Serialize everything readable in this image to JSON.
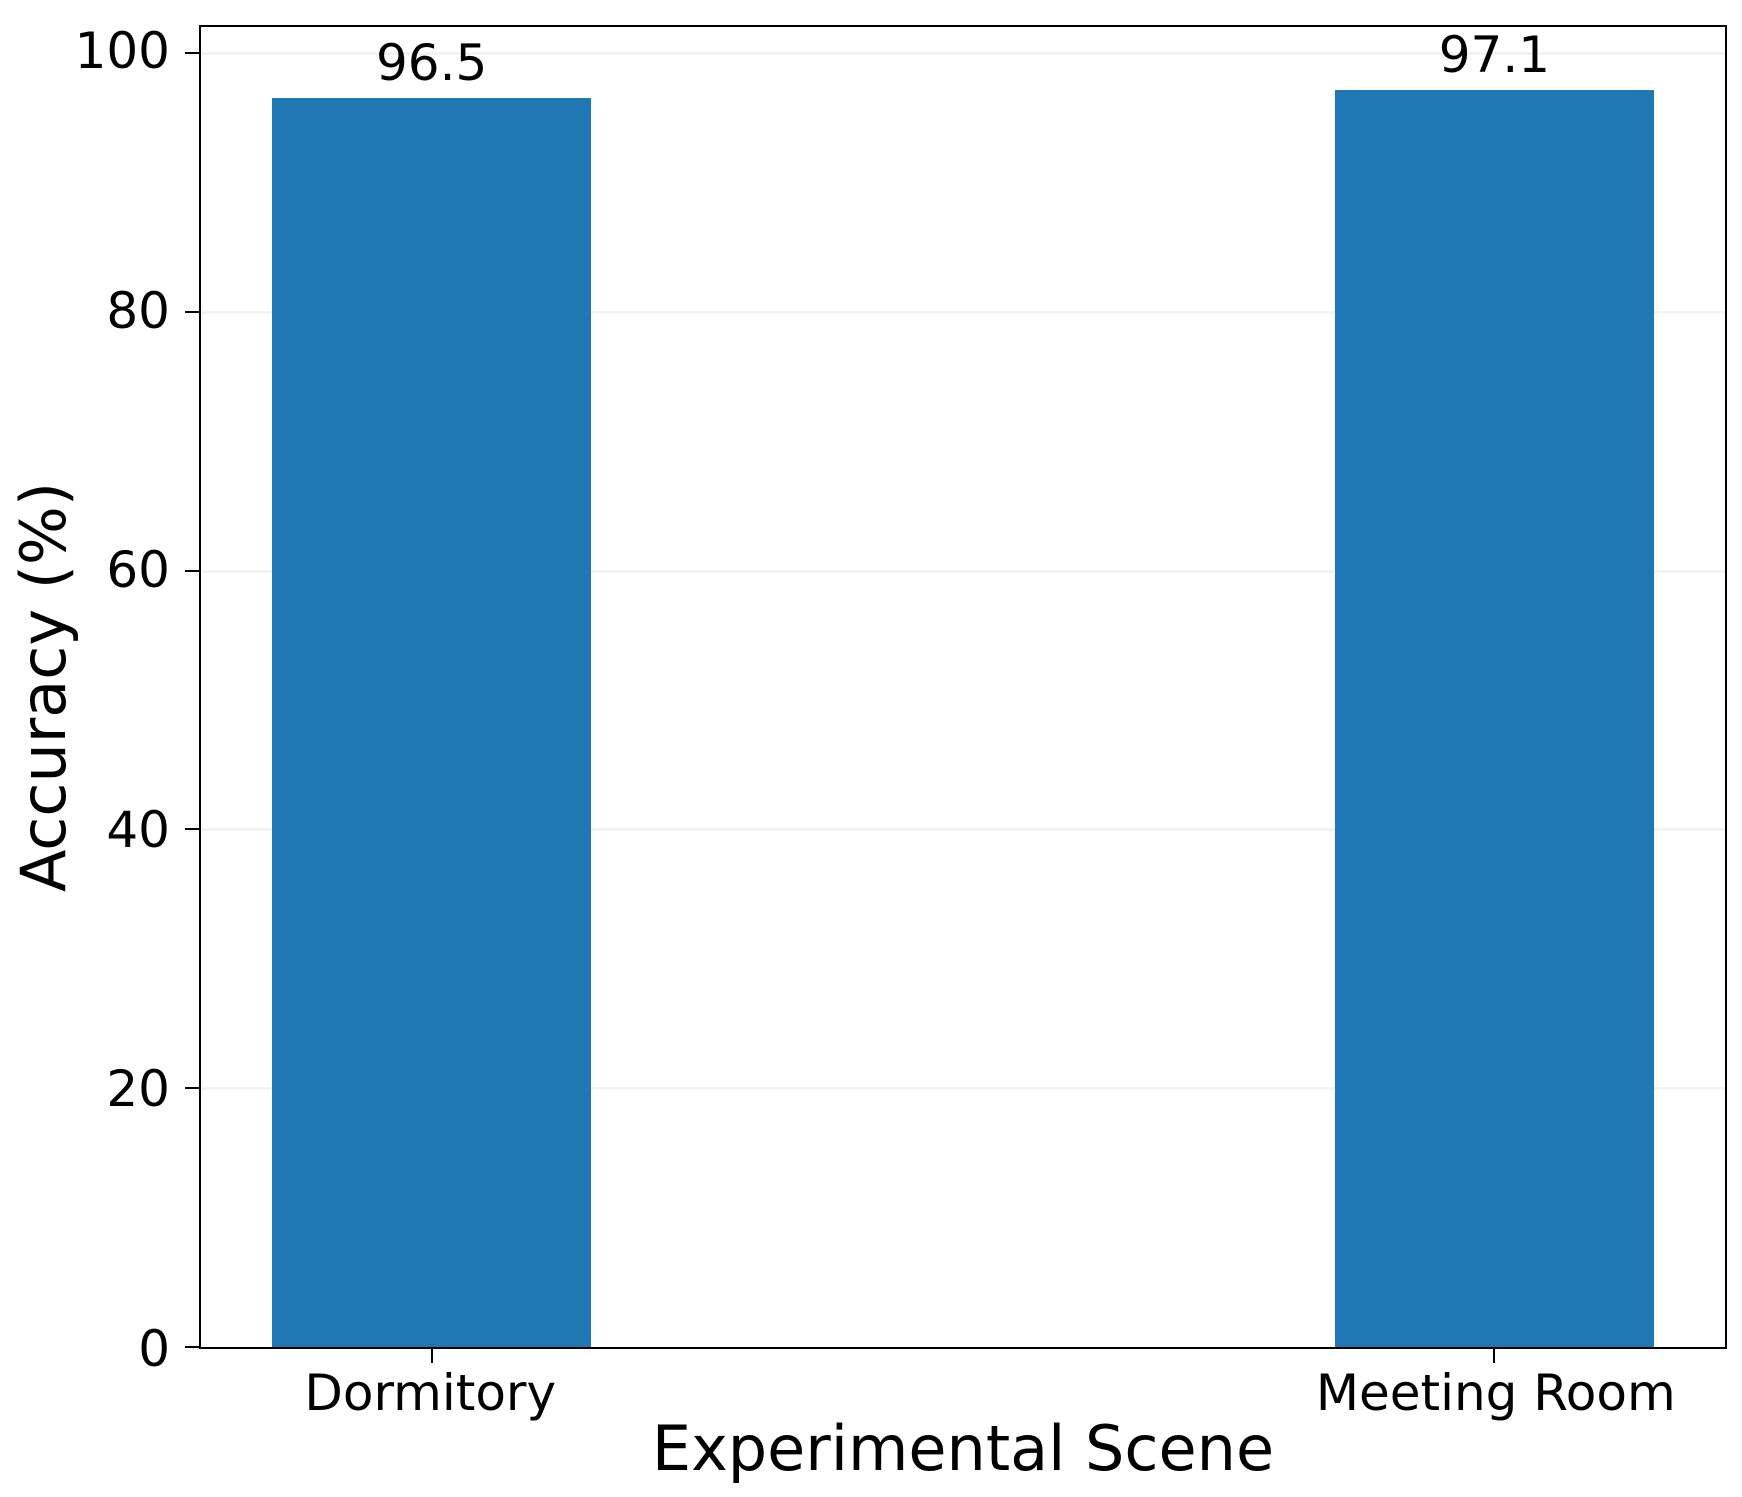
{
  "chart_data": {
    "type": "bar",
    "title": "",
    "xlabel": "Experimental Scene",
    "ylabel": "Accuracy (%)",
    "categories": [
      "Dormitory",
      "Meeting Room"
    ],
    "values": [
      96.5,
      97.1
    ],
    "value_labels": [
      "96.5",
      "97.1"
    ],
    "bar_positions": [
      0,
      1
    ],
    "bar_width": 0.3,
    "xlim": [
      -0.217,
      1.217
    ],
    "yticks": [
      0,
      20,
      40,
      60,
      80,
      100
    ],
    "ytick_labels": [
      "0",
      "20",
      "40",
      "60",
      "80",
      "100"
    ],
    "ylim": [
      0,
      102
    ],
    "bar_color": "#1f77b4",
    "grid": "y",
    "grid_color": "#f3f3f3",
    "spine_color": "#000000",
    "text_color": "#000000",
    "legend_position": "none"
  }
}
